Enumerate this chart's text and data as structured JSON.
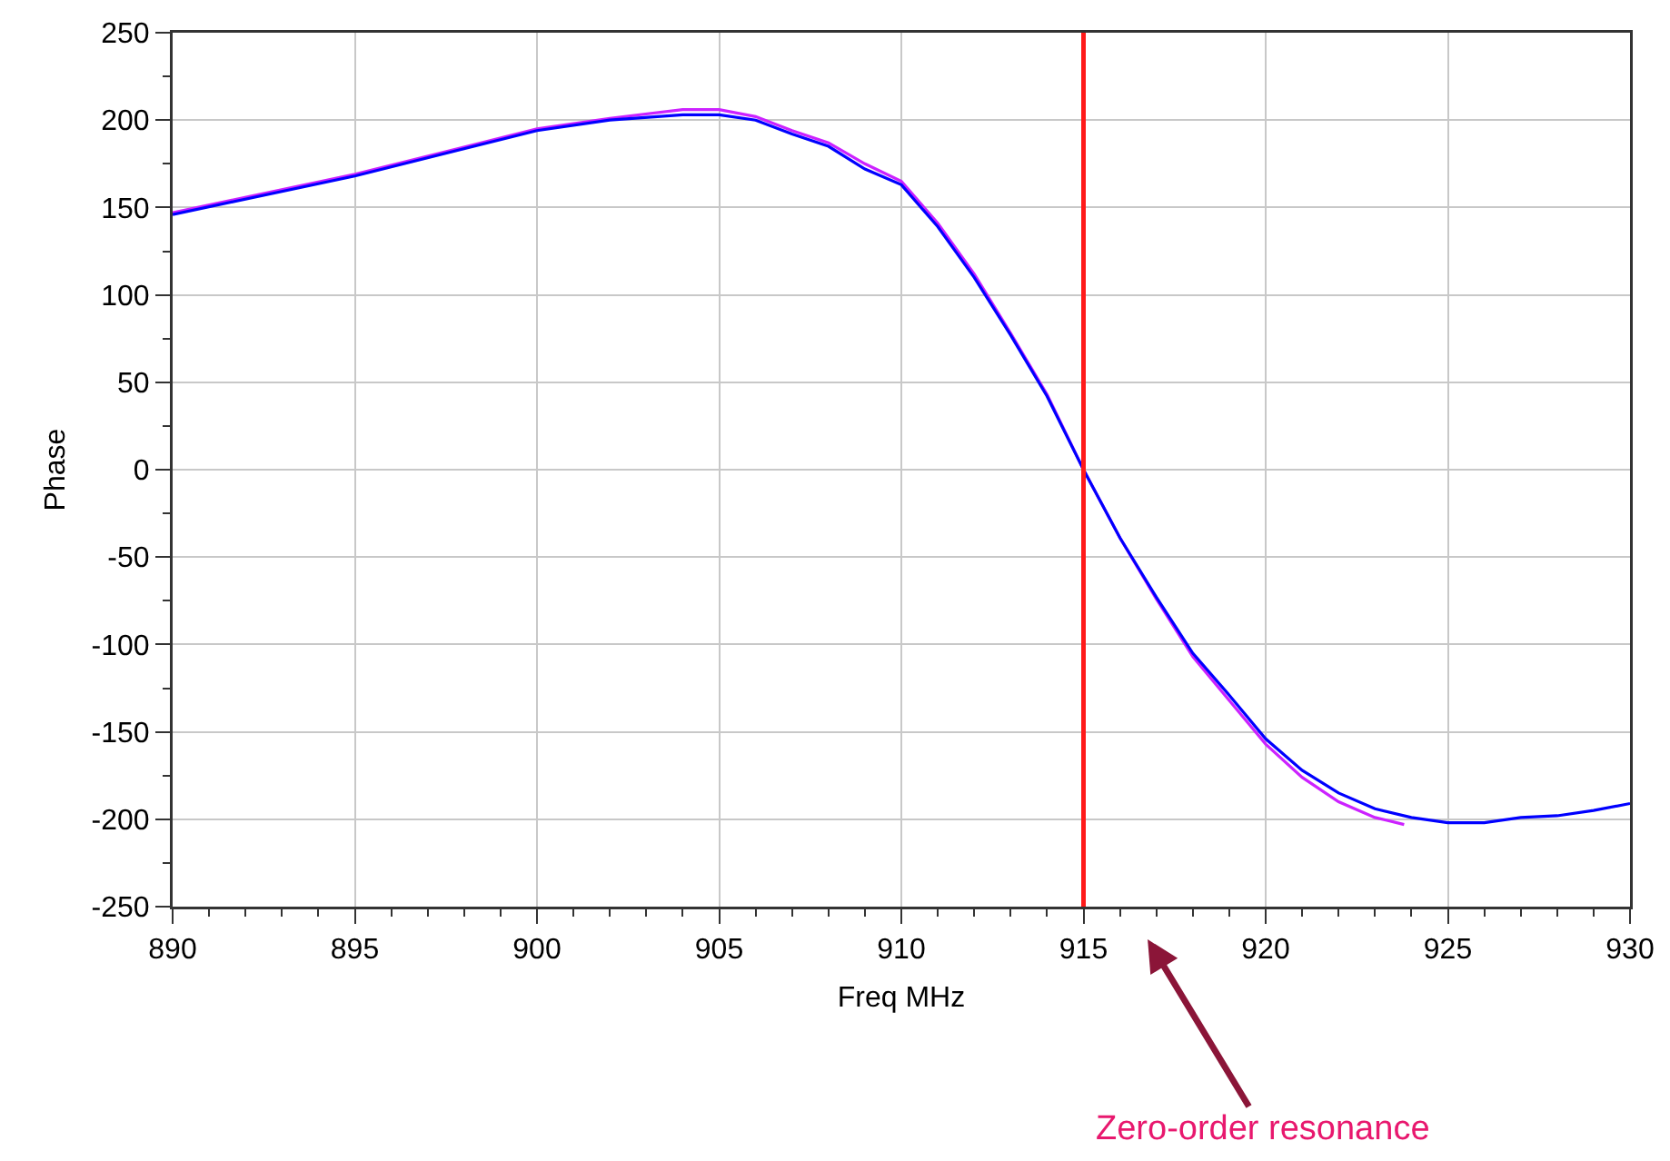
{
  "chart_data": {
    "type": "line",
    "xlabel": "Freq MHz",
    "ylabel": "Phase",
    "xlim": [
      890,
      930
    ],
    "xticks": [
      890,
      895,
      900,
      905,
      910,
      915,
      920,
      925,
      930
    ],
    "ylim": [
      -250,
      250
    ],
    "yticks": [
      -250,
      -200,
      -150,
      -100,
      -50,
      0,
      50,
      100,
      150,
      200,
      250
    ],
    "grid": true,
    "marker": "none",
    "line_style": "solid",
    "series": [
      {
        "color": "#cc22ff",
        "x": [
          890,
          895,
          900,
          902,
          904,
          905,
          906,
          907,
          908,
          909,
          910,
          911,
          912,
          913,
          914,
          915,
          916,
          917,
          918,
          919,
          920,
          921,
          922,
          923,
          923.8
        ],
        "values": [
          147,
          169,
          195,
          201,
          206,
          206,
          202,
          194,
          187,
          175,
          165,
          141,
          112,
          78,
          43,
          0,
          -39,
          -74,
          -107,
          -132,
          -157,
          -176,
          -190,
          -199,
          -203
        ]
      },
      {
        "color": "#0000ff",
        "x": [
          890,
          895,
          900,
          902,
          904,
          905,
          906,
          907,
          908,
          909,
          910,
          911,
          912,
          913,
          914,
          915,
          916,
          917,
          918,
          919,
          920,
          921,
          922,
          923,
          924,
          925,
          926,
          927,
          928,
          929,
          930
        ],
        "values": [
          146,
          168,
          194,
          200,
          203,
          203,
          200,
          192,
          185,
          172,
          163,
          139,
          110,
          77,
          42,
          0,
          -39,
          -73,
          -105,
          -129,
          -154,
          -172,
          -185,
          -194,
          -199,
          -202,
          -202,
          -199,
          -198,
          -195,
          -191
        ]
      }
    ],
    "annotations": [
      "Zero-order resonance"
    ],
    "ref_lines": [
      {
        "axis": "x",
        "value": 915,
        "color": "#ff1a1a",
        "line_style": "solid"
      }
    ]
  }
}
